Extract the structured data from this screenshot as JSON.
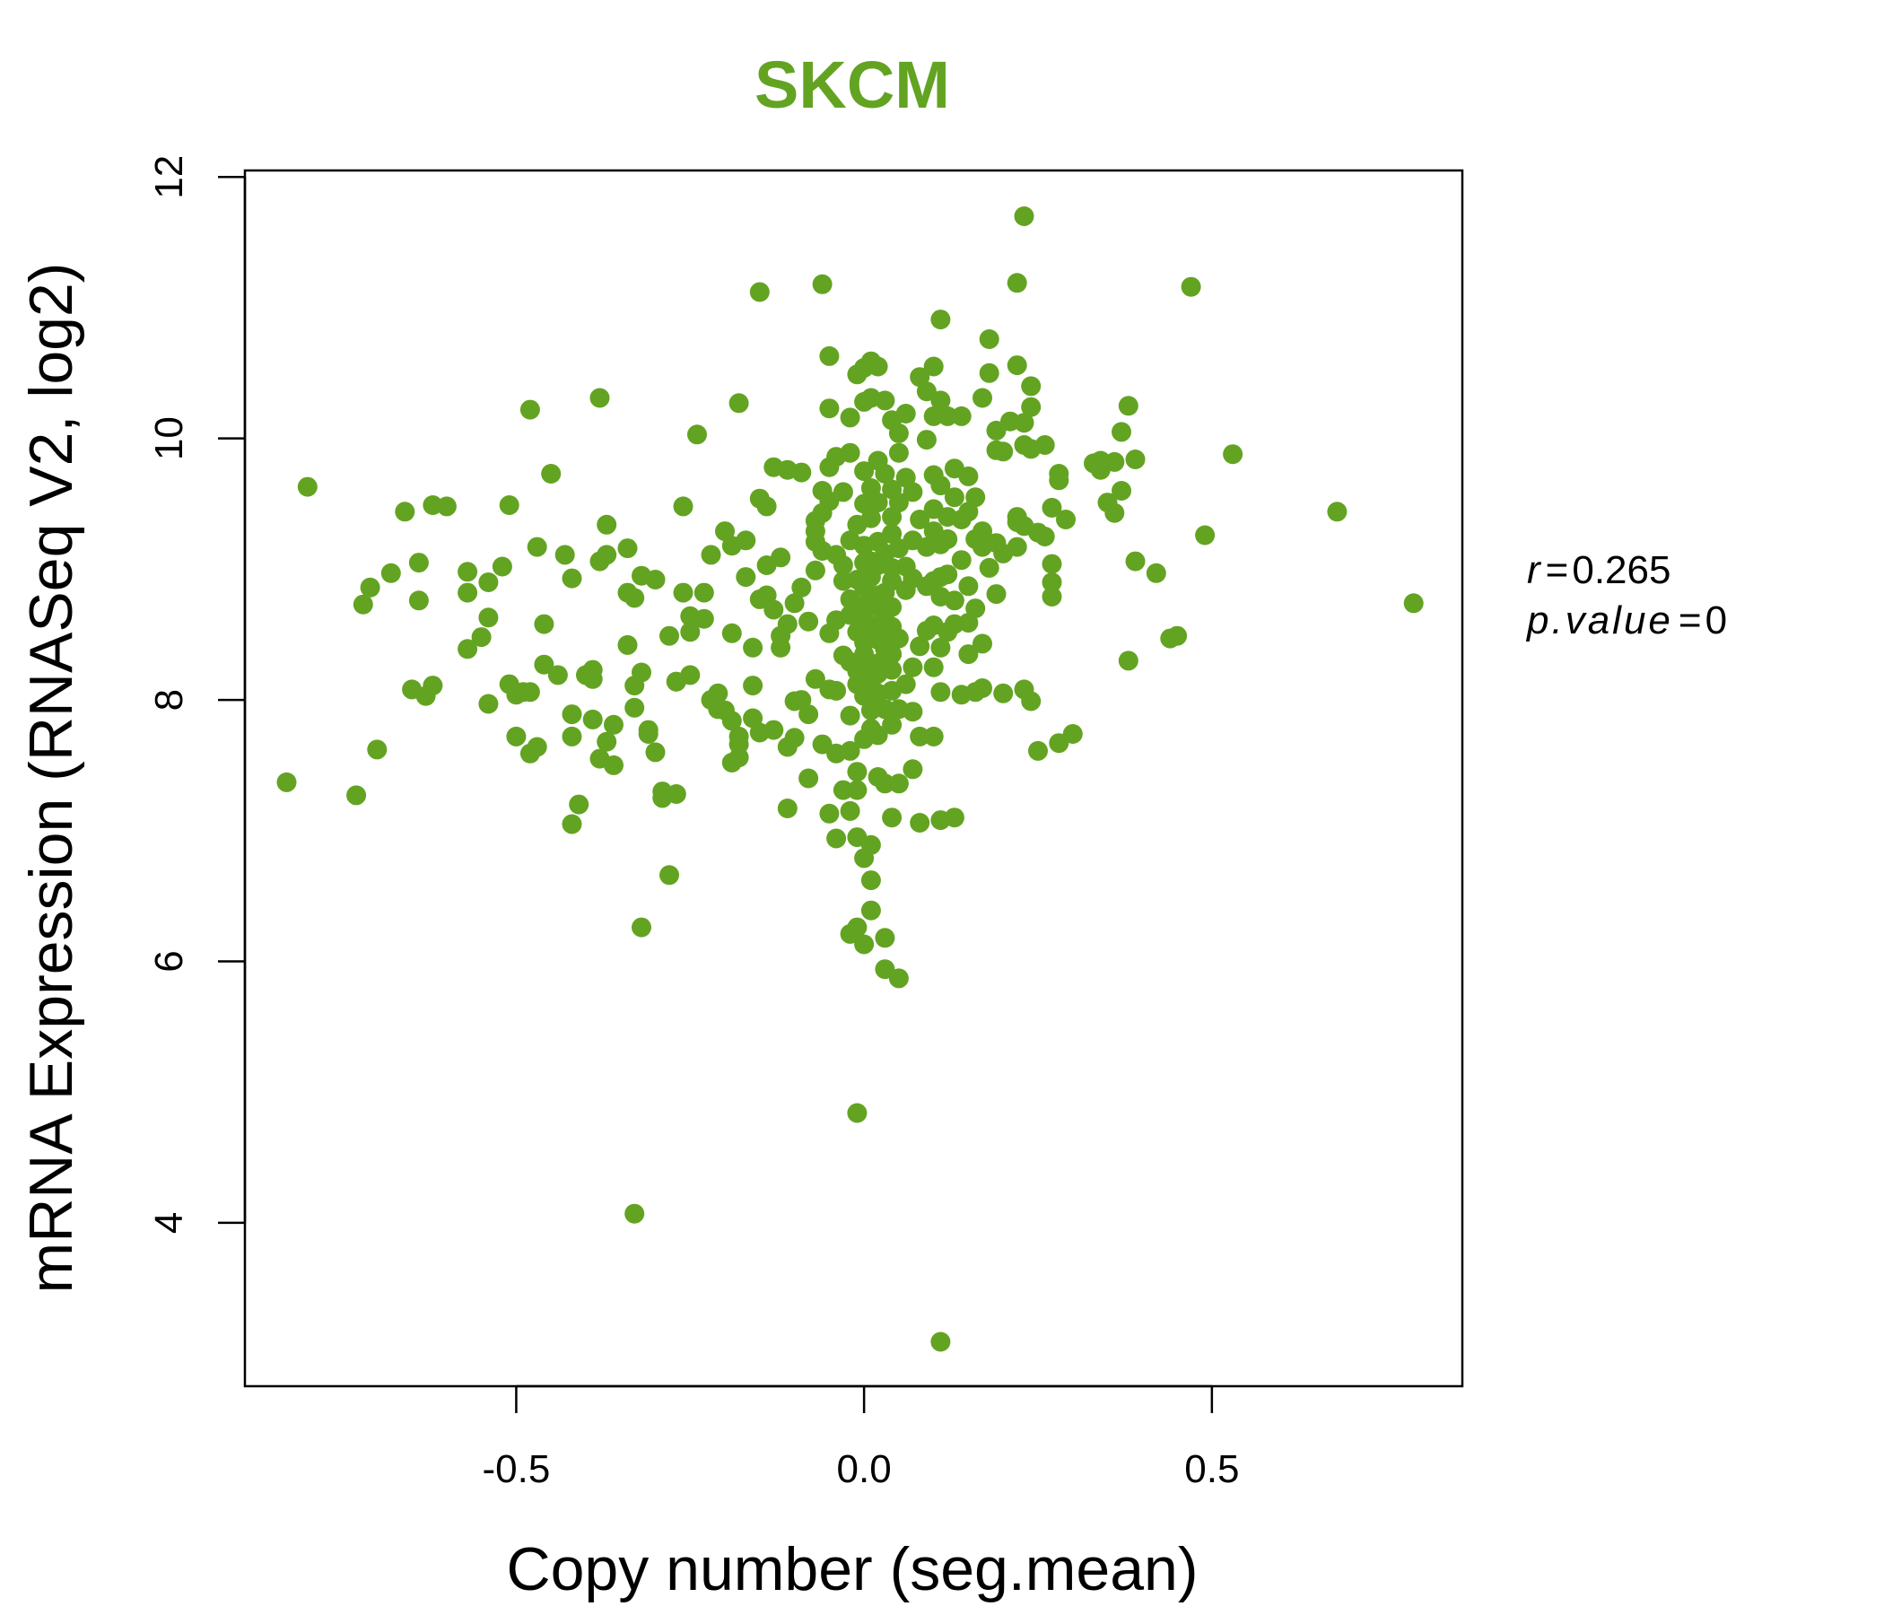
{
  "chart_data": {
    "type": "scatter",
    "title": "SKCM",
    "xlabel": "Copy number (seg.mean)",
    "ylabel": "mRNA Expression (RNASeq V2, log2)",
    "xlim": [
      -0.89,
      0.86
    ],
    "ylim": [
      2.75,
      12.05
    ],
    "x_ticks": [
      -0.5,
      0.0,
      0.5
    ],
    "x_tick_labels": [
      "-0.5",
      "0.0",
      "0.5"
    ],
    "y_ticks": [
      4,
      6,
      8,
      10,
      12
    ],
    "y_tick_labels": [
      "4",
      "6",
      "8",
      "10",
      "12"
    ],
    "grid": false,
    "point_color": "#63A322",
    "title_color": "#63A322",
    "stats": {
      "r_label": "r",
      "r_value": "0.265",
      "p_label": "p.value",
      "p_value": "0"
    },
    "points": [
      [
        -0.83,
        7.37
      ],
      [
        -0.8,
        9.63
      ],
      [
        -0.73,
        7.27
      ],
      [
        -0.72,
        8.73
      ],
      [
        -0.71,
        8.86
      ],
      [
        -0.7,
        7.62
      ],
      [
        -0.68,
        8.97
      ],
      [
        -0.66,
        9.44
      ],
      [
        -0.65,
        8.08
      ],
      [
        -0.64,
        9.05
      ],
      [
        -0.64,
        8.76
      ],
      [
        -0.63,
        8.03
      ],
      [
        -0.62,
        8.11
      ],
      [
        -0.62,
        9.49
      ],
      [
        -0.6,
        9.48
      ],
      [
        -0.57,
        8.98
      ],
      [
        -0.57,
        8.39
      ],
      [
        -0.57,
        8.82
      ],
      [
        -0.55,
        8.48
      ],
      [
        -0.54,
        8.9
      ],
      [
        -0.54,
        8.63
      ],
      [
        -0.54,
        7.97
      ],
      [
        -0.52,
        9.02
      ],
      [
        -0.51,
        9.49
      ],
      [
        -0.51,
        8.12
      ],
      [
        -0.5,
        8.04
      ],
      [
        -0.5,
        7.72
      ],
      [
        -0.49,
        8.06
      ],
      [
        -0.48,
        7.59
      ],
      [
        -0.48,
        10.22
      ],
      [
        -0.48,
        8.06
      ],
      [
        -0.47,
        7.64
      ],
      [
        -0.47,
        9.17
      ],
      [
        -0.46,
        8.27
      ],
      [
        -0.46,
        8.58
      ],
      [
        -0.45,
        9.73
      ],
      [
        -0.44,
        8.19
      ],
      [
        -0.43,
        9.11
      ],
      [
        -0.42,
        8.93
      ],
      [
        -0.42,
        7.05
      ],
      [
        -0.42,
        7.89
      ],
      [
        -0.42,
        7.72
      ],
      [
        -0.41,
        7.2
      ],
      [
        -0.4,
        8.19
      ],
      [
        -0.39,
        8.23
      ],
      [
        -0.39,
        8.16
      ],
      [
        -0.39,
        7.85
      ],
      [
        -0.38,
        10.31
      ],
      [
        -0.38,
        7.55
      ],
      [
        -0.38,
        9.06
      ],
      [
        -0.37,
        9.34
      ],
      [
        -0.37,
        9.11
      ],
      [
        -0.37,
        7.68
      ],
      [
        -0.36,
        7.81
      ],
      [
        -0.36,
        7.5
      ],
      [
        -0.34,
        9.16
      ],
      [
        -0.34,
        8.42
      ],
      [
        -0.34,
        8.82
      ],
      [
        -0.33,
        8.11
      ],
      [
        -0.33,
        8.78
      ],
      [
        -0.33,
        7.94
      ],
      [
        -0.33,
        4.07
      ],
      [
        -0.32,
        6.26
      ],
      [
        -0.32,
        8.21
      ],
      [
        -0.32,
        8.95
      ],
      [
        -0.31,
        7.77
      ],
      [
        -0.31,
        7.74
      ],
      [
        -0.3,
        8.92
      ],
      [
        -0.3,
        7.6
      ],
      [
        -0.29,
        7.3
      ],
      [
        -0.29,
        7.25
      ],
      [
        -0.28,
        8.49
      ],
      [
        -0.28,
        6.66
      ],
      [
        -0.27,
        8.14
      ],
      [
        -0.27,
        7.28
      ],
      [
        -0.27,
        8.14
      ],
      [
        -0.26,
        9.48
      ],
      [
        -0.26,
        8.82
      ],
      [
        -0.25,
        8.64
      ],
      [
        -0.25,
        8.52
      ],
      [
        -0.25,
        8.19
      ],
      [
        -0.24,
        10.03
      ],
      [
        -0.23,
        8.82
      ],
      [
        -0.23,
        8.62
      ],
      [
        -0.22,
        8.0
      ],
      [
        -0.22,
        9.11
      ],
      [
        -0.21,
        7.93
      ],
      [
        -0.21,
        8.05
      ],
      [
        -0.2,
        9.29
      ],
      [
        -0.2,
        7.92
      ],
      [
        -0.19,
        9.18
      ],
      [
        -0.19,
        8.51
      ],
      [
        -0.19,
        7.52
      ],
      [
        -0.19,
        7.84
      ],
      [
        -0.18,
        7.72
      ],
      [
        -0.18,
        10.27
      ],
      [
        -0.18,
        7.66
      ],
      [
        -0.18,
        7.56
      ],
      [
        -0.17,
        8.94
      ],
      [
        -0.17,
        9.22
      ],
      [
        -0.16,
        8.4
      ],
      [
        -0.16,
        7.86
      ],
      [
        -0.16,
        8.11
      ],
      [
        -0.15,
        9.54
      ],
      [
        -0.15,
        11.12
      ],
      [
        -0.15,
        8.77
      ],
      [
        -0.15,
        7.75
      ],
      [
        -0.14,
        9.48
      ],
      [
        -0.14,
        9.03
      ],
      [
        -0.14,
        8.8
      ],
      [
        -0.13,
        9.78
      ],
      [
        -0.13,
        8.69
      ],
      [
        -0.13,
        7.77
      ],
      [
        -0.12,
        8.49
      ],
      [
        -0.12,
        8.4
      ],
      [
        -0.12,
        9.09
      ],
      [
        -0.11,
        7.17
      ],
      [
        -0.11,
        9.76
      ],
      [
        -0.11,
        8.58
      ],
      [
        -0.11,
        7.64
      ],
      [
        -0.1,
        7.99
      ],
      [
        -0.1,
        8.74
      ],
      [
        -0.1,
        7.71
      ],
      [
        -0.09,
        8.86
      ],
      [
        -0.09,
        8.0
      ],
      [
        -0.09,
        9.74
      ],
      [
        -0.08,
        7.4
      ],
      [
        -0.08,
        8.6
      ],
      [
        -0.08,
        7.89
      ],
      [
        -0.07,
        9.37
      ],
      [
        -0.07,
        8.99
      ],
      [
        -0.07,
        9.21
      ],
      [
        -0.07,
        9.29
      ],
      [
        -0.07,
        8.16
      ],
      [
        -0.06,
        9.6
      ],
      [
        -0.06,
        7.66
      ],
      [
        -0.06,
        9.14
      ],
      [
        -0.06,
        11.18
      ],
      [
        -0.06,
        9.43
      ],
      [
        -0.05,
        10.63
      ],
      [
        -0.05,
        10.23
      ],
      [
        -0.05,
        9.78
      ],
      [
        -0.05,
        9.52
      ],
      [
        -0.05,
        8.51
      ],
      [
        -0.05,
        8.08
      ],
      [
        -0.05,
        7.13
      ],
      [
        -0.04,
        9.86
      ],
      [
        -0.04,
        9.11
      ],
      [
        -0.04,
        8.61
      ],
      [
        -0.04,
        8.07
      ],
      [
        -0.04,
        7.59
      ],
      [
        -0.04,
        6.94
      ],
      [
        -0.03,
        9.03
      ],
      [
        -0.03,
        8.91
      ],
      [
        -0.03,
        8.34
      ],
      [
        -0.03,
        7.31
      ],
      [
        -0.03,
        9.59
      ],
      [
        -0.02,
        10.16
      ],
      [
        -0.02,
        8.65
      ],
      [
        -0.02,
        8.77
      ],
      [
        -0.02,
        8.29
      ],
      [
        -0.02,
        7.88
      ],
      [
        -0.02,
        7.61
      ],
      [
        -0.02,
        7.15
      ],
      [
        -0.02,
        6.21
      ],
      [
        -0.02,
        9.22
      ],
      [
        -0.02,
        9.89
      ],
      [
        -0.01,
        8.92
      ],
      [
        -0.01,
        8.52
      ],
      [
        -0.01,
        8.22
      ],
      [
        -0.01,
        8.12
      ],
      [
        -0.01,
        7.45
      ],
      [
        -0.01,
        7.31
      ],
      [
        -0.01,
        6.95
      ],
      [
        -0.01,
        6.26
      ],
      [
        -0.01,
        10.49
      ],
      [
        -0.01,
        9.34
      ],
      [
        -0.01,
        4.84
      ],
      [
        0.0,
        9.05
      ],
      [
        0.0,
        8.72
      ],
      [
        0.0,
        8.44
      ],
      [
        0.0,
        8.27
      ],
      [
        0.0,
        8.03
      ],
      [
        0.0,
        7.7
      ],
      [
        0.0,
        6.79
      ],
      [
        0.0,
        6.13
      ],
      [
        0.0,
        9.75
      ],
      [
        0.0,
        9.5
      ],
      [
        0.0,
        10.54
      ],
      [
        0.0,
        10.28
      ],
      [
        0.0,
        9.18
      ],
      [
        0.0,
        8.86
      ],
      [
        0.0,
        8.61
      ],
      [
        0.0,
        8.35
      ],
      [
        0.01,
        8.08
      ],
      [
        0.01,
        7.78
      ],
      [
        0.01,
        6.89
      ],
      [
        0.01,
        6.62
      ],
      [
        0.01,
        9.06
      ],
      [
        0.01,
        9.39
      ],
      [
        0.01,
        8.57
      ],
      [
        0.01,
        8.14
      ],
      [
        0.01,
        7.92
      ],
      [
        0.01,
        6.39
      ],
      [
        0.01,
        10.59
      ],
      [
        0.01,
        10.31
      ],
      [
        0.01,
        9.62
      ],
      [
        0.01,
        8.94
      ],
      [
        0.02,
        8.71
      ],
      [
        0.02,
        8.46
      ],
      [
        0.02,
        8.2
      ],
      [
        0.02,
        7.41
      ],
      [
        0.02,
        9.83
      ],
      [
        0.02,
        9.21
      ],
      [
        0.02,
        8.8
      ],
      [
        0.02,
        8.53
      ],
      [
        0.02,
        8.28
      ],
      [
        0.02,
        8.05
      ],
      [
        0.02,
        7.73
      ],
      [
        0.02,
        10.55
      ],
      [
        0.02,
        9.51
      ],
      [
        0.02,
        9.03
      ],
      [
        0.03,
        8.66
      ],
      [
        0.03,
        8.39
      ],
      [
        0.03,
        7.93
      ],
      [
        0.03,
        5.94
      ],
      [
        0.03,
        9.73
      ],
      [
        0.03,
        9.12
      ],
      [
        0.03,
        8.82
      ],
      [
        0.03,
        8.48
      ],
      [
        0.03,
        7.36
      ],
      [
        0.03,
        6.18
      ],
      [
        0.03,
        10.29
      ],
      [
        0.04,
        9.61
      ],
      [
        0.04,
        9.27
      ],
      [
        0.04,
        8.91
      ],
      [
        0.04,
        8.71
      ],
      [
        0.04,
        8.35
      ],
      [
        0.04,
        8.07
      ],
      [
        0.04,
        7.81
      ],
      [
        0.04,
        7.1
      ],
      [
        0.04,
        10.14
      ],
      [
        0.04,
        9.4
      ],
      [
        0.04,
        9.01
      ],
      [
        0.04,
        8.56
      ],
      [
        0.04,
        8.23
      ],
      [
        0.05,
        5.87
      ],
      [
        0.05,
        9.89
      ],
      [
        0.05,
        9.16
      ],
      [
        0.05,
        8.47
      ],
      [
        0.05,
        7.93
      ],
      [
        0.05,
        7.36
      ],
      [
        0.05,
        10.04
      ],
      [
        0.05,
        9.51
      ],
      [
        0.06,
        8.84
      ],
      [
        0.06,
        8.12
      ],
      [
        0.06,
        10.19
      ],
      [
        0.06,
        9.7
      ],
      [
        0.06,
        9.02
      ],
      [
        0.07,
        8.93
      ],
      [
        0.07,
        8.25
      ],
      [
        0.07,
        7.91
      ],
      [
        0.07,
        9.59
      ],
      [
        0.07,
        9.22
      ],
      [
        0.07,
        7.47
      ],
      [
        0.08,
        10.47
      ],
      [
        0.08,
        9.38
      ],
      [
        0.08,
        8.41
      ],
      [
        0.08,
        7.72
      ],
      [
        0.08,
        7.06
      ],
      [
        0.09,
        9.99
      ],
      [
        0.09,
        9.17
      ],
      [
        0.09,
        8.87
      ],
      [
        0.09,
        8.53
      ],
      [
        0.09,
        10.36
      ],
      [
        0.1,
        10.17
      ],
      [
        0.1,
        9.72
      ],
      [
        0.1,
        9.29
      ],
      [
        0.1,
        8.91
      ],
      [
        0.1,
        8.57
      ],
      [
        0.1,
        8.25
      ],
      [
        0.1,
        7.72
      ],
      [
        0.1,
        10.55
      ],
      [
        0.1,
        9.46
      ],
      [
        0.11,
        8.79
      ],
      [
        0.11,
        8.4
      ],
      [
        0.11,
        7.08
      ],
      [
        0.11,
        10.29
      ],
      [
        0.11,
        9.64
      ],
      [
        0.11,
        9.19
      ],
      [
        0.11,
        8.94
      ],
      [
        0.11,
        8.06
      ],
      [
        0.11,
        10.91
      ],
      [
        0.11,
        3.09
      ],
      [
        0.12,
        9.4
      ],
      [
        0.12,
        8.96
      ],
      [
        0.12,
        8.52
      ],
      [
        0.12,
        10.17
      ],
      [
        0.12,
        9.23
      ],
      [
        0.13,
        8.76
      ],
      [
        0.13,
        9.77
      ],
      [
        0.13,
        8.58
      ],
      [
        0.13,
        9.55
      ],
      [
        0.13,
        7.1
      ],
      [
        0.14,
        8.04
      ],
      [
        0.14,
        10.17
      ],
      [
        0.14,
        9.38
      ],
      [
        0.14,
        9.07
      ],
      [
        0.15,
        9.44
      ],
      [
        0.15,
        8.87
      ],
      [
        0.15,
        9.71
      ],
      [
        0.15,
        8.59
      ],
      [
        0.15,
        8.35
      ],
      [
        0.16,
        9.55
      ],
      [
        0.16,
        9.23
      ],
      [
        0.16,
        8.06
      ],
      [
        0.16,
        8.7
      ],
      [
        0.17,
        8.43
      ],
      [
        0.17,
        9.29
      ],
      [
        0.17,
        8.09
      ],
      [
        0.17,
        10.31
      ],
      [
        0.17,
        9.17
      ],
      [
        0.18,
        10.76
      ],
      [
        0.18,
        9.01
      ],
      [
        0.18,
        10.5
      ],
      [
        0.19,
        8.81
      ],
      [
        0.19,
        10.06
      ],
      [
        0.19,
        9.91
      ],
      [
        0.19,
        9.2
      ],
      [
        0.2,
        9.9
      ],
      [
        0.2,
        9.12
      ],
      [
        0.2,
        8.05
      ],
      [
        0.21,
        10.13
      ],
      [
        0.22,
        10.56
      ],
      [
        0.22,
        9.4
      ],
      [
        0.22,
        9.36
      ],
      [
        0.22,
        9.17
      ],
      [
        0.22,
        11.19
      ],
      [
        0.23,
        10.12
      ],
      [
        0.23,
        11.7
      ],
      [
        0.23,
        9.95
      ],
      [
        0.23,
        9.33
      ],
      [
        0.24,
        9.92
      ],
      [
        0.24,
        10.4
      ],
      [
        0.24,
        10.24
      ],
      [
        0.24,
        7.99
      ],
      [
        0.25,
        9.28
      ],
      [
        0.25,
        7.61
      ],
      [
        0.26,
        9.95
      ],
      [
        0.26,
        9.25
      ],
      [
        0.27,
        9.47
      ],
      [
        0.27,
        9.04
      ],
      [
        0.27,
        8.9
      ],
      [
        0.27,
        8.79
      ],
      [
        0.28,
        9.73
      ],
      [
        0.28,
        9.68
      ],
      [
        0.28,
        7.67
      ],
      [
        0.29,
        9.38
      ],
      [
        0.3,
        7.74
      ],
      [
        0.33,
        9.81
      ],
      [
        0.34,
        9.76
      ],
      [
        0.34,
        9.83
      ],
      [
        0.35,
        9.51
      ],
      [
        0.36,
        9.43
      ],
      [
        0.36,
        9.82
      ],
      [
        0.37,
        9.6
      ],
      [
        0.37,
        10.05
      ],
      [
        0.38,
        10.25
      ],
      [
        0.38,
        8.3
      ],
      [
        0.39,
        9.06
      ],
      [
        0.39,
        9.84
      ],
      [
        0.42,
        8.97
      ],
      [
        0.44,
        8.47
      ],
      [
        0.45,
        8.49
      ],
      [
        0.47,
        11.16
      ],
      [
        0.49,
        9.26
      ],
      [
        0.53,
        9.88
      ],
      [
        0.68,
        9.44
      ],
      [
        0.79,
        8.74
      ],
      [
        0.23,
        8.08
      ]
    ]
  }
}
